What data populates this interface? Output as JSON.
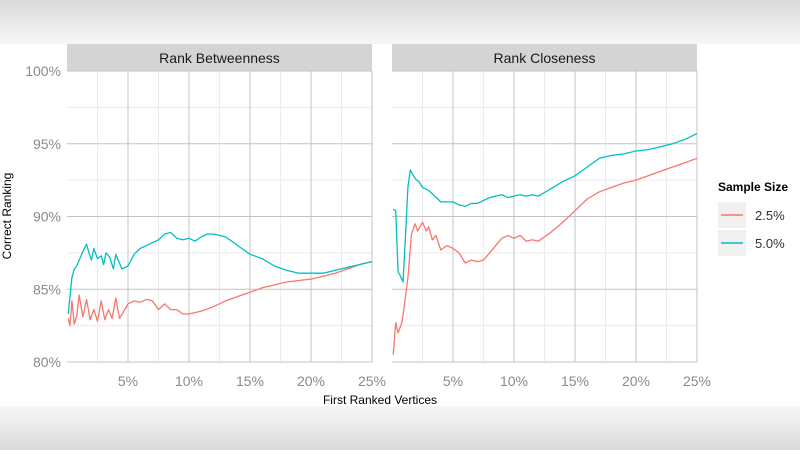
{
  "chart_data": {
    "type": "line",
    "ylabel": "Correct Ranking",
    "xlabel": "First Ranked Vertices",
    "xlim": [
      0,
      25
    ],
    "ylim": [
      80,
      100
    ],
    "x_ticks": [
      {
        "value": 5,
        "label": "5%"
      },
      {
        "value": 10,
        "label": "10%"
      },
      {
        "value": 15,
        "label": "15%"
      },
      {
        "value": 20,
        "label": "20%"
      },
      {
        "value": 25,
        "label": "25%"
      }
    ],
    "y_ticks": [
      {
        "value": 80,
        "label": "80%"
      },
      {
        "value": 85,
        "label": "85%"
      },
      {
        "value": 90,
        "label": "90%"
      },
      {
        "value": 95,
        "label": "95%"
      },
      {
        "value": 100,
        "label": "100%"
      }
    ],
    "grid": true,
    "legend": {
      "title": "Sample Size",
      "position": "right",
      "entries": [
        {
          "label": "2.5%",
          "color": "#F8766D"
        },
        {
          "label": "5.0%",
          "color": "#00BFC4"
        }
      ]
    },
    "panels": [
      {
        "title": "Rank Betweenness",
        "series": [
          {
            "name": "2.5%",
            "color": "#F8766D",
            "x": [
              0.1,
              0.25,
              0.4,
              0.6,
              0.8,
              1.0,
              1.3,
              1.6,
              1.9,
              2.2,
              2.5,
              2.8,
              3.1,
              3.4,
              3.7,
              4.0,
              4.3,
              4.6,
              5,
              5.5,
              6,
              6.5,
              7,
              7.5,
              8,
              8.5,
              9,
              9.5,
              10,
              11,
              12,
              13,
              14,
              15,
              16,
              17,
              18,
              19,
              20,
              21,
              22,
              23,
              24,
              25
            ],
            "y": [
              83.0,
              82.5,
              84.2,
              82.6,
              83.2,
              84.6,
              83.1,
              84.3,
              82.9,
              83.6,
              82.8,
              84.2,
              82.9,
              83.6,
              83.0,
              84.4,
              83.0,
              83.4,
              84.0,
              84.2,
              84.1,
              84.3,
              84.2,
              83.6,
              84.0,
              83.6,
              83.6,
              83.3,
              83.3,
              83.5,
              83.8,
              84.2,
              84.5,
              84.8,
              85.1,
              85.3,
              85.5,
              85.6,
              85.7,
              85.9,
              86.1,
              86.4,
              86.7,
              86.9
            ]
          },
          {
            "name": "5.0%",
            "color": "#00BFC4",
            "x": [
              0.1,
              0.25,
              0.4,
              0.6,
              0.8,
              1.0,
              1.3,
              1.6,
              1.8,
              2.0,
              2.2,
              2.5,
              2.8,
              3.0,
              3.2,
              3.5,
              3.8,
              4.0,
              4.5,
              5,
              5.5,
              6,
              6.5,
              7,
              7.5,
              8,
              8.5,
              9,
              9.5,
              10,
              10.5,
              11,
              11.5,
              12,
              13,
              14,
              15,
              16,
              17,
              18,
              19,
              20,
              21,
              22,
              23,
              24,
              25
            ],
            "y": [
              83.3,
              84.5,
              85.8,
              86.4,
              86.6,
              87.0,
              87.6,
              88.1,
              87.5,
              87.0,
              87.8,
              87.1,
              87.3,
              86.7,
              87.5,
              87.2,
              86.4,
              87.4,
              86.4,
              86.6,
              87.4,
              87.8,
              88.0,
              88.2,
              88.4,
              88.8,
              88.9,
              88.5,
              88.4,
              88.5,
              88.3,
              88.6,
              88.8,
              88.8,
              88.6,
              88.0,
              87.4,
              87.1,
              86.6,
              86.3,
              86.1,
              86.1,
              86.1,
              86.3,
              86.5,
              86.7,
              86.9
            ]
          }
        ]
      },
      {
        "title": "Rank Closeness",
        "series": [
          {
            "name": "2.5%",
            "color": "#F8766D",
            "x": [
              0.1,
              0.3,
              0.5,
              0.8,
              1.0,
              1.3,
              1.6,
              1.9,
              2.1,
              2.3,
              2.5,
              2.8,
              3.0,
              3.3,
              3.6,
              4.0,
              4.5,
              5.0,
              5.5,
              6.0,
              6.5,
              7.0,
              7.5,
              8,
              8.5,
              9,
              9.5,
              10,
              10.5,
              11,
              11.5,
              12,
              13,
              14,
              15,
              16,
              17,
              18,
              19,
              20,
              21,
              22,
              23,
              24,
              25
            ],
            "y": [
              80.5,
              82.7,
              82.0,
              82.7,
              83.8,
              85.8,
              88.8,
              89.5,
              89.0,
              89.3,
              89.6,
              89.0,
              89.3,
              88.4,
              88.7,
              87.7,
              88.0,
              87.8,
              87.5,
              86.8,
              87.0,
              86.9,
              87.0,
              87.5,
              88.0,
              88.5,
              88.7,
              88.5,
              88.7,
              88.3,
              88.4,
              88.3,
              88.9,
              89.6,
              90.4,
              91.2,
              91.7,
              92.0,
              92.3,
              92.5,
              92.8,
              93.1,
              93.4,
              93.7,
              94.0
            ]
          },
          {
            "name": "5.0%",
            "color": "#00BFC4",
            "x": [
              0.1,
              0.3,
              0.5,
              0.7,
              0.9,
              1.1,
              1.3,
              1.5,
              1.7,
              1.9,
              2.2,
              2.5,
              3.0,
              3.5,
              4.0,
              4.5,
              5.0,
              5.5,
              6.0,
              6.5,
              7.0,
              7.5,
              8,
              8.5,
              9,
              9.5,
              10,
              10.5,
              11,
              11.5,
              12,
              13,
              14,
              15,
              16,
              17,
              18,
              19,
              20,
              21,
              22,
              23,
              24,
              25
            ],
            "y": [
              90.5,
              90.4,
              86.2,
              85.9,
              85.5,
              88.5,
              92.0,
              93.2,
              92.9,
              92.6,
              92.4,
              92.0,
              91.8,
              91.4,
              91.0,
              91.0,
              91.0,
              90.8,
              90.7,
              90.9,
              90.9,
              91.1,
              91.3,
              91.4,
              91.5,
              91.3,
              91.4,
              91.5,
              91.4,
              91.5,
              91.4,
              91.9,
              92.4,
              92.8,
              93.4,
              94.0,
              94.2,
              94.3,
              94.5,
              94.6,
              94.8,
              95.0,
              95.3,
              95.7
            ]
          }
        ]
      }
    ]
  }
}
